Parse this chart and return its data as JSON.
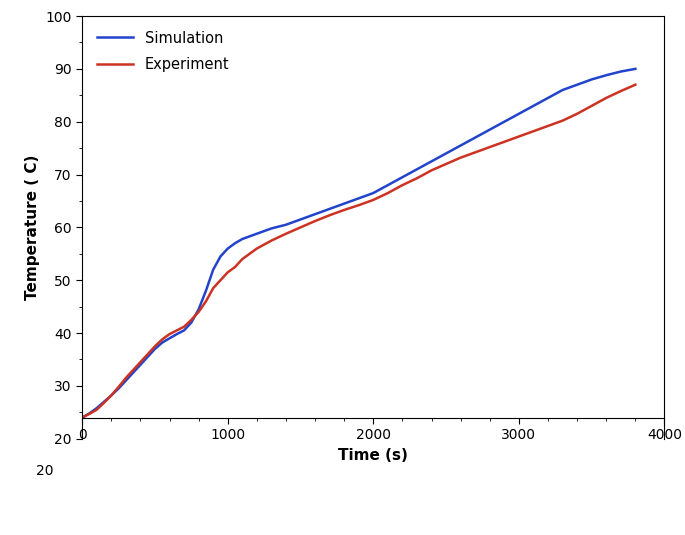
{
  "simulation_x": [
    0,
    50,
    100,
    150,
    200,
    250,
    300,
    350,
    400,
    450,
    500,
    550,
    600,
    650,
    700,
    750,
    800,
    850,
    900,
    950,
    1000,
    1050,
    1100,
    1150,
    1200,
    1300,
    1400,
    1500,
    1600,
    1700,
    1800,
    1900,
    2000,
    2100,
    2200,
    2300,
    2400,
    2500,
    2600,
    2700,
    2800,
    2900,
    3000,
    3100,
    3200,
    3300,
    3400,
    3500,
    3600,
    3700,
    3800
  ],
  "simulation_y": [
    24,
    24.8,
    25.8,
    27.0,
    28.2,
    29.5,
    31.0,
    32.5,
    34.0,
    35.5,
    37.0,
    38.2,
    39.0,
    39.8,
    40.5,
    42.0,
    44.5,
    48.0,
    52.0,
    54.5,
    56.0,
    57.0,
    57.8,
    58.3,
    58.8,
    59.8,
    60.5,
    61.5,
    62.5,
    63.5,
    64.5,
    65.5,
    66.5,
    68.0,
    69.5,
    71.0,
    72.5,
    74.0,
    75.5,
    77.0,
    78.5,
    80.0,
    81.5,
    83.0,
    84.5,
    86.0,
    87.0,
    88.0,
    88.8,
    89.5,
    90.0
  ],
  "experiment_x": [
    0,
    50,
    100,
    150,
    200,
    250,
    300,
    350,
    400,
    450,
    500,
    550,
    600,
    650,
    700,
    750,
    800,
    850,
    900,
    950,
    1000,
    1050,
    1100,
    1200,
    1300,
    1400,
    1500,
    1600,
    1700,
    1800,
    1900,
    2000,
    2100,
    2200,
    2300,
    2400,
    2500,
    2600,
    2700,
    2800,
    2900,
    3000,
    3100,
    3200,
    3300,
    3400,
    3500,
    3600,
    3700,
    3800
  ],
  "experiment_y": [
    24,
    24.7,
    25.5,
    26.8,
    28.2,
    29.8,
    31.5,
    33.0,
    34.5,
    36.0,
    37.5,
    38.8,
    39.8,
    40.5,
    41.2,
    42.5,
    44.0,
    46.0,
    48.5,
    50.0,
    51.5,
    52.5,
    54.0,
    56.0,
    57.5,
    58.8,
    60.0,
    61.2,
    62.3,
    63.3,
    64.2,
    65.2,
    66.5,
    68.0,
    69.3,
    70.8,
    72.0,
    73.2,
    74.2,
    75.2,
    76.2,
    77.2,
    78.2,
    79.2,
    80.2,
    81.5,
    83.0,
    84.5,
    85.8,
    87.0
  ],
  "sim_color": "#2244cc",
  "exp_color": "#cc3322",
  "sim_label": "Simulation",
  "exp_label": "Experiment",
  "xlabel": "Time (s)",
  "ylabel": "Temperature ( C)",
  "xlim": [
    0,
    4000
  ],
  "ylim_plot": [
    24,
    100
  ],
  "ylim_axis": [
    20,
    100
  ],
  "yticks": [
    20,
    30,
    40,
    50,
    60,
    70,
    80,
    90,
    100
  ],
  "xticks": [
    0,
    1000,
    2000,
    3000,
    4000
  ],
  "linewidth": 1.8
}
